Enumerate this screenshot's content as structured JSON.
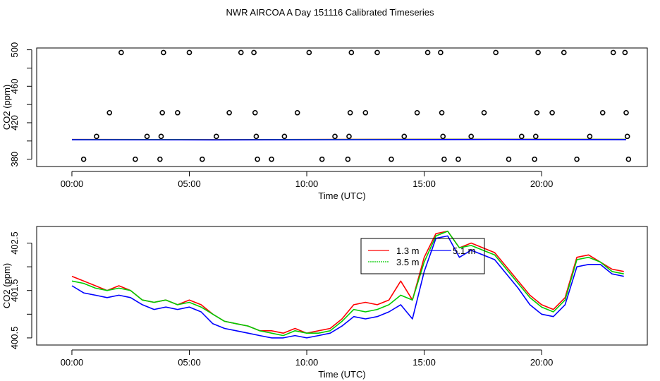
{
  "figure": {
    "title": "NWR AIRCOA A  Day 151116  Calibrated Timeseries"
  },
  "chart_data": [
    {
      "type": "scatter",
      "id": "top",
      "title": "",
      "xlabel": "Time (UTC)",
      "ylabel": "CO2 (ppm)",
      "xlim": [
        -1.5,
        24.5
      ],
      "ylim": [
        372,
        502
      ],
      "xticks": [
        0,
        5,
        10,
        15,
        20
      ],
      "xtick_labels": [
        "00:00",
        "05:00",
        "10:00",
        "15:00",
        "20:00"
      ],
      "yticks": [
        380,
        420,
        460,
        500
      ],
      "ytick_labels": [
        "380",
        "420",
        "460",
        "500"
      ],
      "yminor": [
        400,
        440,
        480
      ],
      "points": [
        {
          "x": 0.5,
          "y": 380
        },
        {
          "x": 1.05,
          "y": 405
        },
        {
          "x": 1.6,
          "y": 431
        },
        {
          "x": 2.1,
          "y": 497
        },
        {
          "x": 2.7,
          "y": 380
        },
        {
          "x": 3.2,
          "y": 405
        },
        {
          "x": 3.75,
          "y": 380
        },
        {
          "x": 3.8,
          "y": 405
        },
        {
          "x": 3.85,
          "y": 431
        },
        {
          "x": 3.9,
          "y": 497
        },
        {
          "x": 4.5,
          "y": 431
        },
        {
          "x": 5.0,
          "y": 497
        },
        {
          "x": 5.55,
          "y": 380
        },
        {
          "x": 6.15,
          "y": 405
        },
        {
          "x": 6.7,
          "y": 431
        },
        {
          "x": 7.2,
          "y": 497
        },
        {
          "x": 7.75,
          "y": 497
        },
        {
          "x": 7.8,
          "y": 431
        },
        {
          "x": 7.85,
          "y": 405
        },
        {
          "x": 7.9,
          "y": 380
        },
        {
          "x": 8.5,
          "y": 380
        },
        {
          "x": 9.05,
          "y": 405
        },
        {
          "x": 9.6,
          "y": 431
        },
        {
          "x": 10.1,
          "y": 497
        },
        {
          "x": 10.65,
          "y": 380
        },
        {
          "x": 11.2,
          "y": 405
        },
        {
          "x": 11.75,
          "y": 380
        },
        {
          "x": 11.8,
          "y": 405
        },
        {
          "x": 11.85,
          "y": 431
        },
        {
          "x": 11.9,
          "y": 497
        },
        {
          "x": 12.5,
          "y": 431
        },
        {
          "x": 13.0,
          "y": 497
        },
        {
          "x": 13.6,
          "y": 380
        },
        {
          "x": 14.15,
          "y": 405
        },
        {
          "x": 14.7,
          "y": 431
        },
        {
          "x": 15.15,
          "y": 497
        },
        {
          "x": 15.7,
          "y": 497
        },
        {
          "x": 15.75,
          "y": 431
        },
        {
          "x": 15.8,
          "y": 405
        },
        {
          "x": 15.85,
          "y": 380
        },
        {
          "x": 16.45,
          "y": 380
        },
        {
          "x": 17.0,
          "y": 405
        },
        {
          "x": 17.55,
          "y": 431
        },
        {
          "x": 18.05,
          "y": 497
        },
        {
          "x": 18.6,
          "y": 380
        },
        {
          "x": 19.15,
          "y": 405
        },
        {
          "x": 19.7,
          "y": 380
        },
        {
          "x": 19.75,
          "y": 405
        },
        {
          "x": 19.8,
          "y": 431
        },
        {
          "x": 19.85,
          "y": 497
        },
        {
          "x": 20.45,
          "y": 431
        },
        {
          "x": 20.95,
          "y": 497
        },
        {
          "x": 21.5,
          "y": 380
        },
        {
          "x": 22.05,
          "y": 405
        },
        {
          "x": 22.6,
          "y": 431
        },
        {
          "x": 23.05,
          "y": 497
        },
        {
          "x": 23.55,
          "y": 497
        },
        {
          "x": 23.6,
          "y": 431
        },
        {
          "x": 23.65,
          "y": 405
        },
        {
          "x": 23.7,
          "y": 380
        }
      ],
      "series": [
        {
          "name": "1.3 m",
          "color": "#ff0000",
          "x": [
            0,
            6,
            12,
            18,
            23.6
          ],
          "values": [
            401.6,
            401.5,
            401.7,
            401.9,
            401.8
          ]
        },
        {
          "name": "3.5 m",
          "color": "#00cc00",
          "x": [
            0,
            6,
            12,
            18,
            23.6
          ],
          "values": [
            401.5,
            401.4,
            401.6,
            401.8,
            401.7
          ]
        },
        {
          "name": "5.1 m",
          "color": "#0000ff",
          "x": [
            0,
            6,
            12,
            18,
            23.6
          ],
          "values": [
            401.3,
            401.2,
            401.4,
            401.6,
            401.5
          ]
        }
      ]
    },
    {
      "type": "line",
      "id": "bottom",
      "title": "",
      "xlabel": "Time (UTC)",
      "ylabel": "CO2 (ppm)",
      "xlim": [
        -1.5,
        24.5
      ],
      "ylim": [
        400.35,
        402.85
      ],
      "xticks": [
        0,
        5,
        10,
        15,
        20
      ],
      "xtick_labels": [
        "00:00",
        "05:00",
        "10:00",
        "15:00",
        "20:00"
      ],
      "yticks": [
        400.5,
        401.5,
        402.5
      ],
      "ytick_labels": [
        "400.5",
        "401.5",
        "402.5"
      ],
      "yminor": [
        401.0,
        402.0
      ],
      "legend": {
        "position": "top-right",
        "labels": [
          "1.3 m",
          "3.5 m",
          "5.1 m"
        ]
      },
      "series": [
        {
          "name": "1.3 m",
          "color": "#ff0000",
          "x": [
            0,
            0.5,
            1,
            1.5,
            2,
            2.5,
            3,
            3.5,
            4,
            4.5,
            5,
            5.5,
            6,
            6.5,
            7,
            7.5,
            8,
            8.5,
            9,
            9.5,
            10,
            10.5,
            11,
            11.5,
            12,
            12.5,
            13,
            13.5,
            14,
            14.5,
            15,
            15.5,
            16,
            16.5,
            17,
            17.5,
            18,
            18.5,
            19,
            19.5,
            20,
            20.5,
            21,
            21.5,
            22,
            22.5,
            23,
            23.5
          ],
          "values": [
            401.8,
            401.7,
            401.6,
            401.5,
            401.6,
            401.5,
            401.3,
            401.25,
            401.3,
            401.2,
            401.3,
            401.2,
            401.0,
            400.85,
            400.8,
            400.75,
            400.65,
            400.65,
            400.6,
            400.7,
            400.6,
            400.65,
            400.7,
            400.9,
            401.2,
            401.25,
            401.2,
            401.3,
            401.7,
            401.3,
            402.2,
            402.7,
            402.75,
            402.4,
            402.5,
            402.4,
            402.3,
            402.0,
            401.7,
            401.4,
            401.2,
            401.1,
            401.35,
            402.2,
            402.25,
            402.1,
            401.95,
            401.9
          ]
        },
        {
          "name": "3.5 m",
          "color": "#00cc00",
          "x": [
            0,
            0.5,
            1,
            1.5,
            2,
            2.5,
            3,
            3.5,
            4,
            4.5,
            5,
            5.5,
            6,
            6.5,
            7,
            7.5,
            8,
            8.5,
            9,
            9.5,
            10,
            10.5,
            11,
            11.5,
            12,
            12.5,
            13,
            13.5,
            14,
            14.5,
            15,
            15.5,
            16,
            16.5,
            17,
            17.5,
            18,
            18.5,
            19,
            19.5,
            20,
            20.5,
            21,
            21.5,
            22,
            22.5,
            23,
            23.5
          ],
          "values": [
            401.7,
            401.65,
            401.55,
            401.5,
            401.55,
            401.5,
            401.3,
            401.25,
            401.3,
            401.2,
            401.25,
            401.15,
            401.0,
            400.85,
            400.8,
            400.75,
            400.65,
            400.6,
            400.55,
            400.65,
            400.6,
            400.6,
            400.65,
            400.85,
            401.1,
            401.05,
            401.1,
            401.2,
            401.4,
            401.3,
            402.1,
            402.65,
            402.75,
            402.4,
            402.45,
            402.35,
            402.25,
            401.95,
            401.65,
            401.35,
            401.15,
            401.05,
            401.3,
            402.15,
            402.2,
            402.1,
            401.9,
            401.85
          ]
        },
        {
          "name": "5.1 m",
          "color": "#0000ff",
          "x": [
            0,
            0.5,
            1,
            1.5,
            2,
            2.5,
            3,
            3.5,
            4,
            4.5,
            5,
            5.5,
            6,
            6.5,
            7,
            7.5,
            8,
            8.5,
            9,
            9.5,
            10,
            10.5,
            11,
            11.5,
            12,
            12.5,
            13,
            13.5,
            14,
            14.5,
            15,
            15.5,
            16,
            16.5,
            17,
            17.5,
            18,
            18.5,
            19,
            19.5,
            20,
            20.5,
            21,
            21.5,
            22,
            22.5,
            23,
            23.5
          ],
          "values": [
            401.6,
            401.45,
            401.4,
            401.35,
            401.4,
            401.35,
            401.2,
            401.1,
            401.15,
            401.1,
            401.15,
            401.05,
            400.8,
            400.7,
            400.65,
            400.6,
            400.55,
            400.5,
            400.5,
            400.55,
            400.5,
            400.55,
            400.6,
            400.75,
            400.95,
            400.9,
            400.95,
            401.05,
            401.2,
            400.9,
            401.9,
            402.6,
            402.65,
            402.2,
            402.35,
            402.25,
            402.15,
            401.85,
            401.55,
            401.2,
            401.0,
            400.95,
            401.2,
            402.0,
            402.05,
            402.05,
            401.85,
            401.8
          ]
        }
      ]
    }
  ]
}
